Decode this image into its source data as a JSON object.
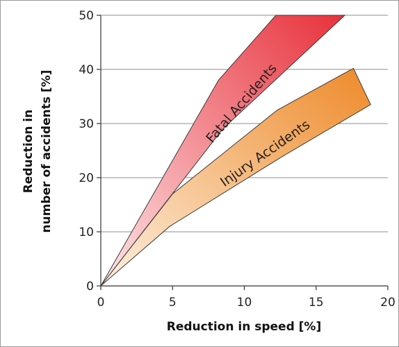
{
  "chart_data": {
    "type": "area",
    "title": "",
    "xlabel": "Reduction in speed [%]",
    "ylabel_lines": [
      "Reduction in",
      "number of accidents [%]"
    ],
    "xlim": [
      0,
      20
    ],
    "ylim": [
      0,
      50
    ],
    "xticks": [
      0,
      5,
      10,
      15,
      20
    ],
    "yticks": [
      0,
      10,
      20,
      30,
      40,
      50
    ],
    "grid": "horizontal",
    "legend": "none",
    "series": [
      {
        "name": "Fatal Accidents",
        "color": "#e8313b",
        "color_light": "#fde6e8",
        "upper": [
          [
            0,
            0
          ],
          [
            8.2,
            38
          ],
          [
            12.2,
            50
          ]
        ],
        "lower": [
          [
            0,
            0
          ],
          [
            8.5,
            29
          ],
          [
            17,
            50
          ]
        ]
      },
      {
        "name": "Injury Accidents",
        "color": "#ee8a2a",
        "color_light": "#fdf0e0",
        "upper": [
          [
            0,
            0
          ],
          [
            5,
            17
          ],
          [
            12.3,
            32.5
          ],
          [
            17.6,
            40.2
          ]
        ],
        "lower": [
          [
            0,
            0
          ],
          [
            4.8,
            11
          ],
          [
            12.7,
            24
          ],
          [
            18.8,
            33.5
          ]
        ]
      }
    ]
  }
}
